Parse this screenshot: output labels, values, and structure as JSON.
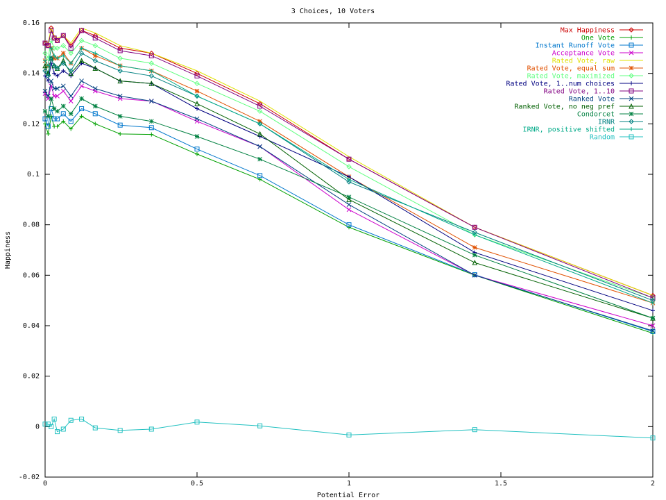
{
  "chart_data": {
    "type": "line",
    "title": "3 Choices, 10 Voters",
    "xlabel": "Potential Error",
    "ylabel": "Happiness",
    "xlim": [
      0,
      2
    ],
    "ylim": [
      -0.02,
      0.16
    ],
    "xticks": [
      "0",
      "0.5",
      "1",
      "1.5",
      "2"
    ],
    "yticks": [
      "-0.02",
      "0",
      "0.02",
      "0.04",
      "0.06",
      "0.08",
      "0.1",
      "0.12",
      "0.14",
      "0.16"
    ],
    "grid": false,
    "legend_position": "top-right",
    "x": [
      0,
      0.01,
      0.02,
      0.03,
      0.04,
      0.06,
      0.085,
      0.12,
      0.165,
      0.247,
      0.35,
      0.5,
      0.707,
      1,
      1.414,
      2
    ],
    "series": [
      {
        "name": "Max Happiness",
        "color": "#cc0000",
        "marker": "diamond",
        "values": [
          0.152,
          0.151,
          0.158,
          0.154,
          0.153,
          0.155,
          0.151,
          0.157,
          0.155,
          0.15,
          0.148,
          0.14,
          0.128,
          0.106,
          0.079,
          0.052
        ]
      },
      {
        "name": "One Vote",
        "color": "#00a000",
        "marker": "plus",
        "values": [
          0.12,
          0.116,
          0.123,
          0.119,
          0.119,
          0.121,
          0.118,
          0.123,
          0.12,
          0.116,
          0.1158,
          0.108,
          0.098,
          0.079,
          0.06,
          0.037
        ]
      },
      {
        "name": "Instant Runoff Vote",
        "color": "#0077cc",
        "marker": "square",
        "values": [
          0.122,
          0.119,
          0.126,
          0.122,
          0.122,
          0.124,
          0.121,
          0.126,
          0.124,
          0.1195,
          0.1185,
          0.11,
          0.0995,
          0.08,
          0.0602,
          0.0377
        ]
      },
      {
        "name": "Acceptance Vote",
        "color": "#cc00cc",
        "marker": "x",
        "values": [
          0.132,
          0.13,
          0.135,
          0.131,
          0.131,
          0.133,
          0.129,
          0.135,
          0.133,
          0.13,
          0.129,
          0.121,
          0.111,
          0.086,
          0.06,
          0.04
        ]
      },
      {
        "name": "Rated Vote, raw",
        "color": "#e0e000",
        "marker": "none",
        "values": [
          0.153,
          0.152,
          0.158,
          0.155,
          0.154,
          0.155,
          0.152,
          0.158,
          0.156,
          0.151,
          0.148,
          0.141,
          0.129,
          0.107,
          0.079,
          0.052
        ]
      },
      {
        "name": "Rated Vote, equal sum",
        "color": "#e05000",
        "marker": "star",
        "values": [
          0.145,
          0.143,
          0.15,
          0.146,
          0.146,
          0.148,
          0.144,
          0.15,
          0.147,
          0.143,
          0.141,
          0.133,
          0.121,
          0.099,
          0.071,
          0.049
        ]
      },
      {
        "name": "Rated Vote, maximized",
        "color": "#60ff80",
        "marker": "diamond",
        "values": [
          0.148,
          0.146,
          0.153,
          0.15,
          0.15,
          0.151,
          0.148,
          0.153,
          0.151,
          0.146,
          0.144,
          0.136,
          0.125,
          0.103,
          0.076,
          0.051
        ]
      },
      {
        "name": "Rated Vote, 1..num choices",
        "color": "#000080",
        "marker": "plus",
        "values": [
          0.139,
          0.137,
          0.144,
          0.14,
          0.139,
          0.141,
          0.139,
          0.144,
          0.142,
          0.137,
          0.136,
          0.126,
          0.115,
          0.099,
          0.069,
          0.046
        ]
      },
      {
        "name": "Rated Vote, 1..10",
        "color": "#800080",
        "marker": "square",
        "values": [
          0.152,
          0.151,
          0.157,
          0.154,
          0.153,
          0.155,
          0.15,
          0.157,
          0.154,
          0.149,
          0.147,
          0.139,
          0.127,
          0.106,
          0.079,
          0.051
        ]
      },
      {
        "name": "Ranked Vote",
        "color": "#004080",
        "marker": "x",
        "values": [
          0.133,
          0.131,
          0.137,
          0.134,
          0.134,
          0.135,
          0.131,
          0.137,
          0.134,
          0.131,
          0.129,
          0.122,
          0.111,
          0.088,
          0.06,
          0.038
        ]
      },
      {
        "name": "Ranked Vote, no neg pref",
        "color": "#006000",
        "marker": "triangle",
        "values": [
          0.143,
          0.14,
          0.146,
          0.143,
          0.142,
          0.145,
          0.14,
          0.145,
          0.142,
          0.137,
          0.136,
          0.128,
          0.116,
          0.09,
          0.065,
          0.043
        ]
      },
      {
        "name": "Condorcet",
        "color": "#008040",
        "marker": "star",
        "values": [
          0.125,
          0.123,
          0.13,
          0.126,
          0.125,
          0.127,
          0.124,
          0.13,
          0.127,
          0.123,
          0.121,
          0.115,
          0.106,
          0.091,
          0.068,
          0.043
        ]
      },
      {
        "name": "IRNR",
        "color": "#008080",
        "marker": "diamond",
        "values": [
          0.141,
          0.139,
          0.146,
          0.143,
          0.142,
          0.144,
          0.141,
          0.148,
          0.145,
          0.141,
          0.139,
          0.131,
          0.12,
          0.097,
          0.077,
          0.05
        ]
      },
      {
        "name": "IRNR, positive shifted",
        "color": "#00aa88",
        "marker": "plus",
        "values": [
          0.145,
          0.143,
          0.15,
          0.147,
          0.146,
          0.147,
          0.144,
          0.15,
          0.148,
          0.143,
          0.141,
          0.131,
          0.12,
          0.098,
          0.076,
          0.049
        ]
      },
      {
        "name": "Random",
        "color": "#20c0c0",
        "marker": "square",
        "values": [
          0.001,
          0.001,
          0.0,
          0.003,
          -0.002,
          -0.001,
          0.0025,
          0.003,
          -0.0005,
          -0.0015,
          -0.001,
          0.0018,
          0.0003,
          -0.0033,
          -0.0012,
          -0.0045
        ]
      }
    ]
  }
}
